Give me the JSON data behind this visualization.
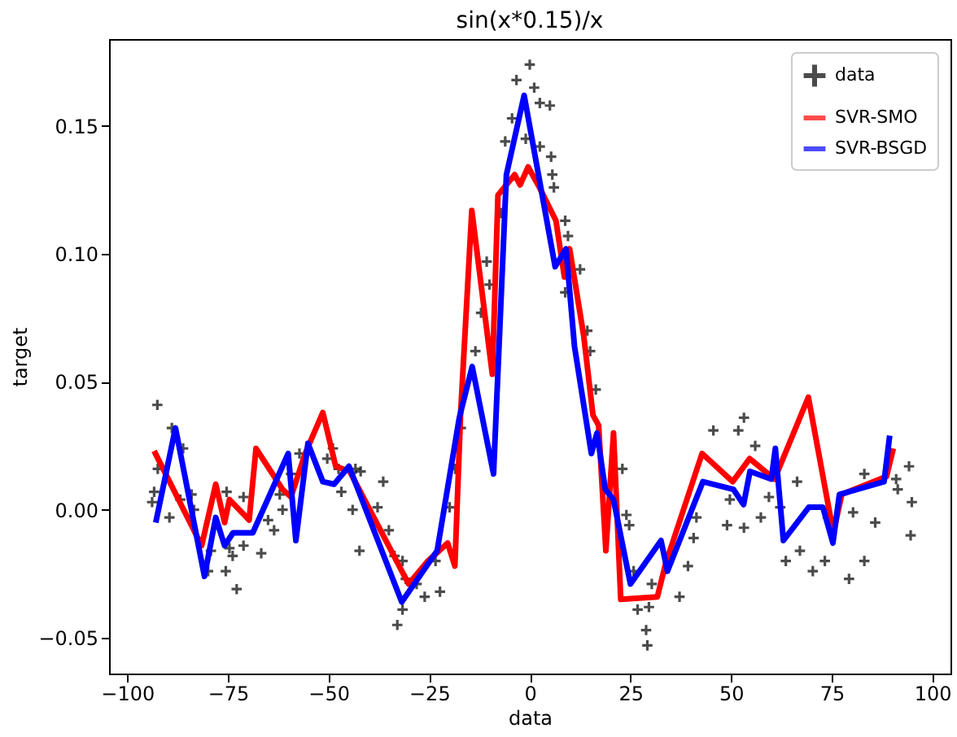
{
  "chart_data": {
    "type": "line",
    "title": "sin(x*0.15)/x",
    "xlabel": "data",
    "ylabel": "target",
    "xlim": [
      -104.5,
      104.5
    ],
    "xticks": [
      {
        "value": -100,
        "label": "−100"
      },
      {
        "value": -75,
        "label": "−75"
      },
      {
        "value": -50,
        "label": "−50"
      },
      {
        "value": -25,
        "label": "−25"
      },
      0,
      25,
      50,
      75,
      100
    ],
    "ylim": [
      -0.064,
      0.184
    ],
    "yticks": [
      {
        "value": -0.05,
        "label": "−0.05"
      },
      {
        "value": 0,
        "label": "0.00"
      },
      {
        "value": 0.05,
        "label": "0.05"
      },
      {
        "value": 0.1,
        "label": "0.10"
      },
      0.15
    ],
    "grid": false,
    "legend": "top right",
    "line_style": "solid",
    "series": [
      {
        "name": "data",
        "type": "scatter",
        "marker": "cross",
        "color": "#000000",
        "x": [
          -92.5,
          -93.8,
          -93.3,
          -92.4,
          -89.5,
          -88.9,
          -86.1,
          -86.8,
          -84,
          -83.4,
          -79.9,
          -79.2,
          -75.3,
          -75.5,
          -74.6,
          -73.8,
          -72.8,
          -71.1,
          -71.1,
          -66.7,
          -65,
          -63.5,
          -62.1,
          -61.4,
          -59.3,
          -57.2,
          -50.3,
          -48.9,
          -47.5,
          -46.8,
          -43.3,
          -42,
          -44,
          -42.3,
          -36.4,
          -37.8,
          -35,
          -33.6,
          -31.6,
          -30.8,
          -32.9,
          -31.6,
          -28.1,
          -26.1,
          -22.3,
          -23.4,
          -19.9,
          -18.5,
          -17.1,
          -13.5,
          -10.7,
          -10,
          -12.1,
          -7.2,
          -6.1,
          -4.4,
          -3.3,
          0,
          1.1,
          2.5,
          5,
          -1,
          2.5,
          5.3,
          5.6,
          6,
          8.8,
          9.5,
          8.8,
          12.5,
          14.3,
          15,
          16.4,
          23,
          24,
          24.7,
          25.8,
          26.8,
          28.9,
          29.2,
          30.3,
          29.6,
          37.2,
          39.3,
          40.7,
          41.4,
          45.6,
          49,
          49.7,
          51.8,
          53.2,
          53.2,
          56,
          57.4,
          59.4,
          62.2,
          63.6,
          66.4,
          67.1,
          70.3,
          73.3,
          74,
          80.3,
          79.3,
          83.1,
          83.1,
          85.8,
          91.4,
          94.2,
          94.9,
          94.6,
          91
        ],
        "values": [
          0.041,
          0.003,
          0.007,
          0.016,
          -0.003,
          0.032,
          0.024,
          0.004,
          0.006,
          0.0,
          -0.024,
          -0.016,
          0.007,
          -0.024,
          -0.015,
          -0.018,
          -0.031,
          -0.014,
          0.005,
          -0.017,
          -0.004,
          -0.008,
          0.006,
          0.0,
          0.014,
          0.022,
          0.02,
          0.024,
          0.016,
          0.007,
          0.016,
          0.015,
          0.0,
          -0.016,
          0.011,
          0.001,
          -0.008,
          -0.018,
          -0.02,
          -0.027,
          -0.045,
          -0.039,
          -0.029,
          -0.034,
          -0.032,
          -0.02,
          0.001,
          0.016,
          0.032,
          0.062,
          0.097,
          0.088,
          0.077,
          0.116,
          0.144,
          0.153,
          0.168,
          0.174,
          0.165,
          0.159,
          0.158,
          0.145,
          0.142,
          0.138,
          0.131,
          0.126,
          0.113,
          0.107,
          0.085,
          0.094,
          0.07,
          0.062,
          0.047,
          0.016,
          -0.002,
          -0.006,
          -0.024,
          -0.039,
          -0.047,
          -0.053,
          -0.029,
          -0.038,
          -0.034,
          -0.022,
          -0.011,
          -0.003,
          0.031,
          -0.006,
          0.004,
          0.031,
          0.036,
          -0.007,
          0.025,
          -0.003,
          0.005,
          0.001,
          -0.02,
          0.011,
          -0.016,
          -0.024,
          -0.02,
          -0.003,
          -0.001,
          -0.027,
          -0.02,
          0.014,
          -0.005,
          0.008,
          0.017,
          0.003,
          -0.01,
          0.012
        ]
      },
      {
        "name": "SVR-SMO",
        "type": "line",
        "color": "#ff0000",
        "x": [
          -93.3,
          -81.5,
          -78,
          -75.8,
          -74.6,
          -69.7,
          -68,
          -61.4,
          -59.3,
          -55.8,
          -51.4,
          -48.2,
          -44.7,
          -30.1,
          -25.3,
          -20.4,
          -18.6,
          -17.2,
          -14.4,
          -9.3,
          -7.9,
          -3.75,
          -2.4,
          -0.4,
          2.4,
          6.5,
          8.6,
          9.9,
          13.4,
          15.7,
          17.1,
          18.9,
          20.8,
          22.6,
          31.7,
          33.75,
          42.8,
          50.4,
          54.6,
          60.8,
          69.2,
          75.4,
          77.5,
          88.6,
          90.3
        ],
        "values": [
          0.023,
          -0.014,
          0.01,
          -0.005,
          0.004,
          -0.004,
          0.024,
          0.008,
          0.005,
          0.022,
          0.038,
          0.017,
          0.015,
          -0.029,
          -0.02,
          -0.013,
          -0.022,
          0.037,
          0.117,
          0.053,
          0.123,
          0.131,
          0.127,
          0.134,
          0.126,
          0.113,
          0.091,
          0.102,
          0.068,
          0.037,
          0.033,
          -0.016,
          0.03,
          -0.035,
          -0.034,
          -0.021,
          0.022,
          0.011,
          0.02,
          0.012,
          0.044,
          -0.009,
          0.006,
          0.013,
          0.024
        ]
      },
      {
        "name": "SVR-BSGD",
        "type": "line",
        "color": "#0000ff",
        "x": [
          -92.9,
          -88,
          -80.8,
          -78,
          -75.8,
          -73.7,
          -68.8,
          -60,
          -58.1,
          -55.1,
          -51.4,
          -48.6,
          -44.9,
          -31.8,
          -23,
          -17.5,
          -14.3,
          -9,
          -5.8,
          -1.4,
          6.3,
          9,
          11.1,
          15.3,
          16.7,
          18.75,
          20.8,
          25,
          32.6,
          34.2,
          43,
          50.6,
          53.1,
          54.7,
          60,
          61,
          63,
          69.3,
          72.8,
          75.3,
          76.9,
          88,
          89.4
        ],
        "values": [
          -0.005,
          0.032,
          -0.026,
          -0.003,
          -0.014,
          -0.009,
          -0.009,
          0.022,
          -0.012,
          0.026,
          0.011,
          0.01,
          0.017,
          -0.036,
          -0.016,
          0.036,
          0.056,
          0.014,
          0.131,
          0.162,
          0.095,
          0.102,
          0.064,
          0.022,
          0.03,
          0.008,
          0.004,
          -0.029,
          -0.012,
          -0.024,
          0.011,
          0.008,
          0.002,
          0.015,
          0.012,
          0.024,
          -0.012,
          0.001,
          0.001,
          -0.013,
          0.006,
          0.011,
          0.029
        ]
      }
    ]
  }
}
